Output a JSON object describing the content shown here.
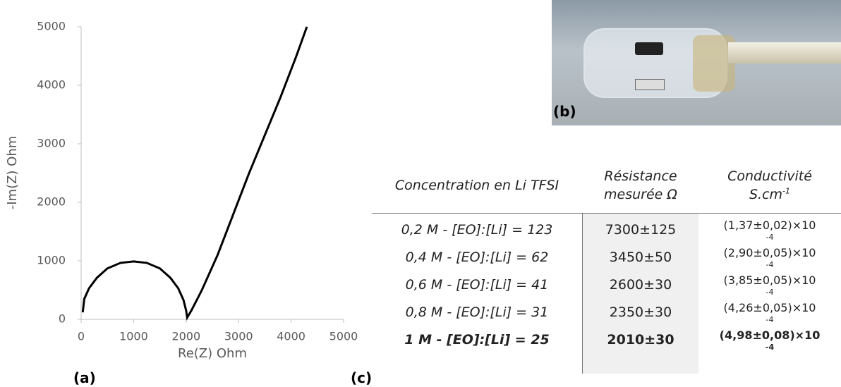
{
  "chart_data": {
    "type": "line",
    "x_label": "Re(Z) Ohm",
    "y_label": "-Im(Z) Ohm",
    "xlim": [
      0,
      5000
    ],
    "xticks": [
      0,
      1000,
      2000,
      3000,
      4000,
      5000
    ],
    "ylim": [
      0,
      5000
    ],
    "yticks": [
      0,
      1000,
      2000,
      3000,
      4000,
      5000
    ],
    "series": [
      {
        "color": "#000000",
        "x": [
          30,
          60,
          150,
          300,
          500,
          750,
          1000,
          1250,
          1500,
          1700,
          1850,
          1950,
          2000,
          2020,
          2100,
          2300,
          2600,
          2900,
          3200,
          3500,
          3800,
          4100,
          4300
        ],
        "values": [
          120,
          350,
          530,
          710,
          870,
          965,
          990,
          965,
          870,
          710,
          530,
          330,
          150,
          30,
          150,
          500,
          1100,
          1800,
          2500,
          3150,
          3800,
          4500,
          5000
        ]
      }
    ]
  },
  "panel_labels": {
    "a": "(a)",
    "b": "(b)",
    "c": "(c)"
  },
  "table": {
    "header": [
      [
        "Concentration en Li TFSI"
      ],
      [
        "Résistance",
        "mesurée Ω"
      ],
      [
        "Conductivité",
        {
          "base": "S.cm",
          "exp": "-1"
        }
      ]
    ],
    "rows": [
      [
        "0,2 M - [EO]:[Li] = 123",
        "7300±125",
        {
          "base": "(1,37±0,02)×10",
          "exp": "-4"
        }
      ],
      [
        "0,4 M - [EO]:[Li] = 62",
        "3450±50",
        {
          "base": "(2,90±0,05)×10",
          "exp": "-4"
        }
      ],
      [
        "0,6 M - [EO]:[Li] = 41",
        "2600±30",
        {
          "base": "(3,85±0,05)×10",
          "exp": "-4"
        }
      ],
      [
        "0,8 M - [EO]:[Li] = 31",
        "2350±30",
        {
          "base": "(4,26±0,05)×10",
          "exp": "-4"
        }
      ],
      [
        "1 M - [EO]:[Li] = 25",
        "2010±30",
        {
          "base": "(4,98±0,08)×10",
          "exp": "-4"
        }
      ]
    ]
  }
}
